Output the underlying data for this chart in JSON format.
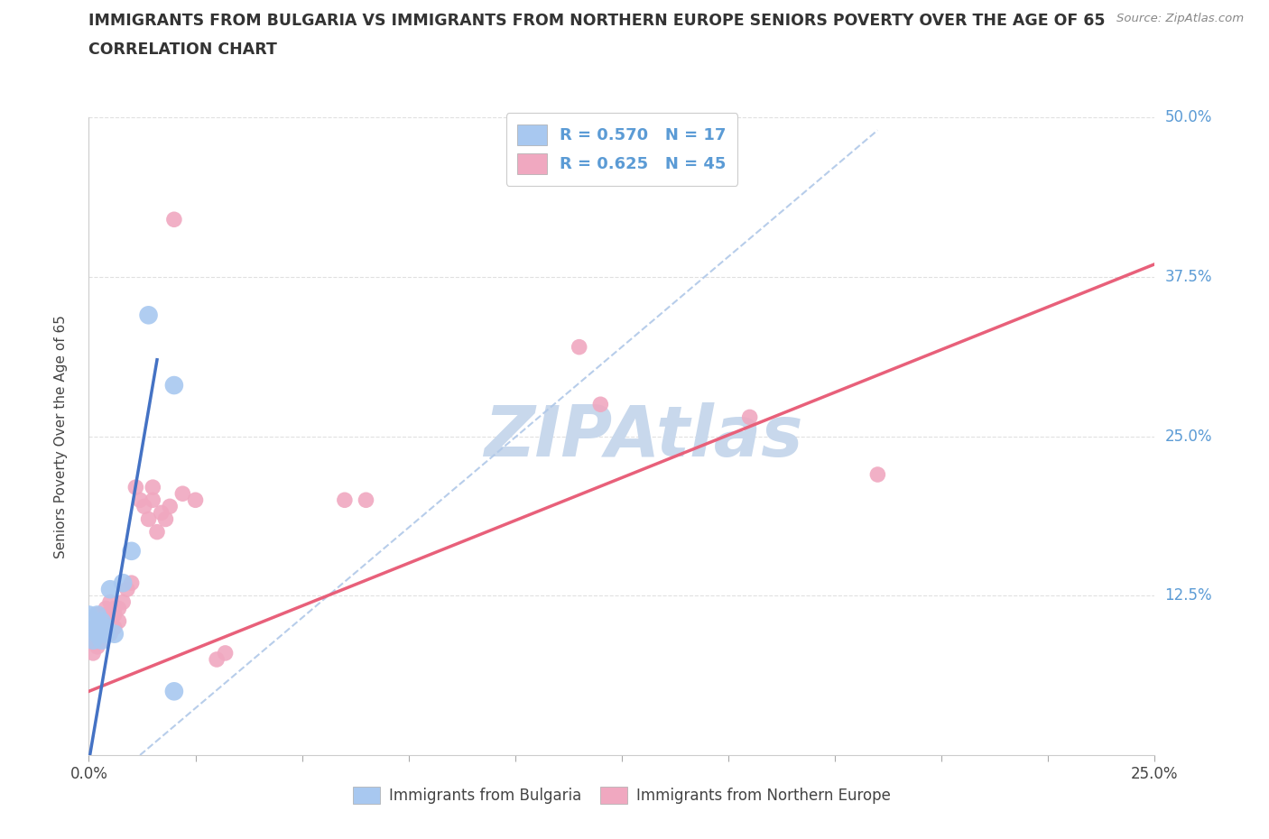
{
  "title_line1": "IMMIGRANTS FROM BULGARIA VS IMMIGRANTS FROM NORTHERN EUROPE SENIORS POVERTY OVER THE AGE OF 65",
  "title_line2": "CORRELATION CHART",
  "source_text": "Source: ZipAtlas.com",
  "ylabel": "Seniors Poverty Over the Age of 65",
  "xlim": [
    0.0,
    0.25
  ],
  "ylim": [
    0.0,
    0.5
  ],
  "bulgaria_color": "#A8C8F0",
  "northern_color": "#F0A8C0",
  "bulgaria_line_color": "#4472C4",
  "northern_line_color": "#E8607A",
  "dashed_line_color": "#B0C8E8",
  "legend_R_bulgaria": "R = 0.570",
  "legend_N_bulgaria": "N = 17",
  "legend_R_northern": "R = 0.625",
  "legend_N_northern": "N = 45",
  "label_bulgaria": "Immigrants from Bulgaria",
  "label_northern": "Immigrants from Northern Europe",
  "bg_color": "#FFFFFF",
  "watermark": "ZIPAtlas",
  "watermark_color": "#C8D8EC",
  "axis_label_color": "#5B9BD5",
  "bulgaria_points": [
    [
      0.0,
      0.105
    ],
    [
      0.0,
      0.11
    ],
    [
      0.001,
      0.09
    ],
    [
      0.001,
      0.1
    ],
    [
      0.002,
      0.095
    ],
    [
      0.002,
      0.11
    ],
    [
      0.003,
      0.105
    ],
    [
      0.003,
      0.09
    ],
    [
      0.004,
      0.1
    ],
    [
      0.004,
      0.095
    ],
    [
      0.005,
      0.13
    ],
    [
      0.006,
      0.095
    ],
    [
      0.008,
      0.135
    ],
    [
      0.01,
      0.16
    ],
    [
      0.014,
      0.345
    ],
    [
      0.02,
      0.29
    ],
    [
      0.02,
      0.05
    ]
  ],
  "northern_points": [
    [
      0.0,
      0.09
    ],
    [
      0.001,
      0.08
    ],
    [
      0.001,
      0.095
    ],
    [
      0.001,
      0.1
    ],
    [
      0.002,
      0.085
    ],
    [
      0.002,
      0.1
    ],
    [
      0.002,
      0.11
    ],
    [
      0.003,
      0.09
    ],
    [
      0.003,
      0.095
    ],
    [
      0.003,
      0.105
    ],
    [
      0.004,
      0.1
    ],
    [
      0.004,
      0.11
    ],
    [
      0.004,
      0.115
    ],
    [
      0.005,
      0.095
    ],
    [
      0.005,
      0.11
    ],
    [
      0.005,
      0.12
    ],
    [
      0.006,
      0.1
    ],
    [
      0.006,
      0.11
    ],
    [
      0.006,
      0.115
    ],
    [
      0.007,
      0.105
    ],
    [
      0.007,
      0.115
    ],
    [
      0.008,
      0.12
    ],
    [
      0.009,
      0.13
    ],
    [
      0.01,
      0.135
    ],
    [
      0.011,
      0.21
    ],
    [
      0.012,
      0.2
    ],
    [
      0.013,
      0.195
    ],
    [
      0.014,
      0.185
    ],
    [
      0.015,
      0.2
    ],
    [
      0.015,
      0.21
    ],
    [
      0.016,
      0.175
    ],
    [
      0.017,
      0.19
    ],
    [
      0.018,
      0.185
    ],
    [
      0.019,
      0.195
    ],
    [
      0.02,
      0.42
    ],
    [
      0.022,
      0.205
    ],
    [
      0.025,
      0.2
    ],
    [
      0.03,
      0.075
    ],
    [
      0.032,
      0.08
    ],
    [
      0.06,
      0.2
    ],
    [
      0.065,
      0.2
    ],
    [
      0.115,
      0.32
    ],
    [
      0.12,
      0.275
    ],
    [
      0.155,
      0.265
    ],
    [
      0.185,
      0.22
    ]
  ],
  "bulgaria_trend_x": [
    0.0,
    0.016
  ],
  "bulgaria_trend_y": [
    -0.005,
    0.31
  ],
  "northern_trend_x": [
    0.0,
    0.25
  ],
  "northern_trend_y": [
    0.05,
    0.385
  ],
  "dashed_trend_x": [
    0.012,
    0.185
  ],
  "dashed_trend_y": [
    0.0,
    0.49
  ],
  "point_size_bulgaria": 220,
  "point_size_northern": 160,
  "grid_color": "#CCCCCC",
  "grid_alpha": 0.6
}
